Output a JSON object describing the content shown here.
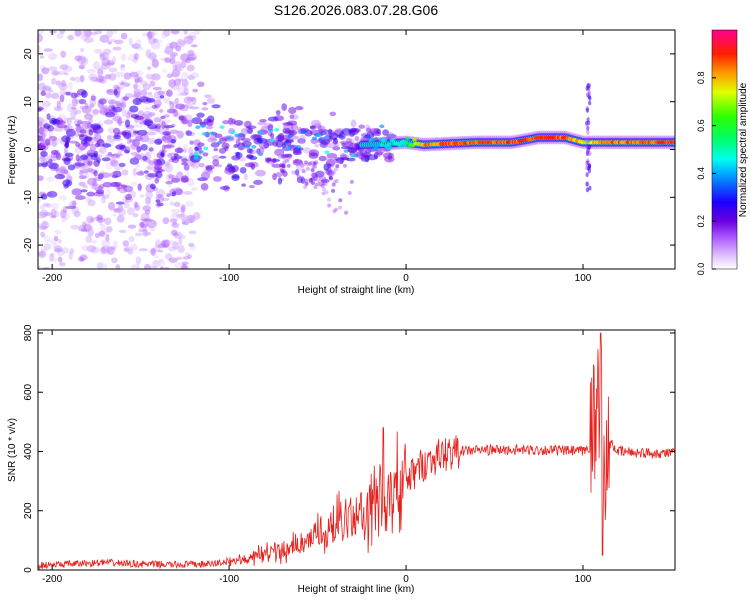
{
  "figure_title": "S126.2026.083.07.28.G06",
  "chart_data": [
    {
      "type": "heatmap",
      "title": "S126.2026.083.07.28.G06",
      "xlabel": "Height of straight line (km)",
      "ylabel": "Frequency (Hz)",
      "xlim": [
        -208,
        152
      ],
      "ylim": [
        -25,
        25
      ],
      "xticks": [
        -200,
        -100,
        0,
        100
      ],
      "yticks": [
        -20,
        -10,
        0,
        10,
        20
      ],
      "tick_labels_x": [
        "-200",
        "-100",
        "0",
        "100"
      ],
      "tick_labels_y": [
        "-20",
        "-10",
        "0",
        "10",
        "20"
      ],
      "colorbar": {
        "label": "Normalized spectral amplitude",
        "range": [
          0.0,
          1.0
        ],
        "ticks": [
          0.0,
          0.2,
          0.4,
          0.6,
          0.8
        ],
        "tick_labels": [
          "0.0",
          "0.2",
          "0.4",
          "0.6",
          "0.8"
        ],
        "colors": [
          "#ffffff",
          "#d9b3ff",
          "#8a2be2",
          "#0000ff",
          "#00ffff",
          "#00ff00",
          "#ffff00",
          "#ff8000",
          "#ff0000",
          "#ff0080"
        ]
      },
      "ridge": {
        "description_points": [
          {
            "x": -20,
            "f": 1.0,
            "a": 0.45
          },
          {
            "x": 0,
            "f": 1.5,
            "a": 0.55
          },
          {
            "x": 10,
            "f": 1.0,
            "a": 0.9
          },
          {
            "x": 40,
            "f": 1.5,
            "a": 0.95
          },
          {
            "x": 60,
            "f": 1.5,
            "a": 0.95
          },
          {
            "x": 75,
            "f": 2.5,
            "a": 0.95
          },
          {
            "x": 90,
            "f": 2.5,
            "a": 0.95
          },
          {
            "x": 100,
            "f": 1.5,
            "a": 0.8
          },
          {
            "x": 115,
            "f": 1.5,
            "a": 0.9
          },
          {
            "x": 140,
            "f": 1.5,
            "a": 0.95
          }
        ]
      }
    },
    {
      "type": "line",
      "xlabel": "Height of straight line (km)",
      "ylabel": "SNR (10 * v/v)",
      "xlim": [
        -208,
        152
      ],
      "ylim": [
        0,
        810
      ],
      "xticks": [
        -200,
        -100,
        0,
        100
      ],
      "yticks": [
        0,
        200,
        400,
        600,
        800
      ],
      "tick_labels_x": [
        "-200",
        "-100",
        "0",
        "100"
      ],
      "tick_labels_y": [
        "0",
        "200",
        "400",
        "600",
        "800"
      ],
      "color": "#e8201c",
      "series": [
        {
          "name": "SNR",
          "x": [
            -208,
            -190,
            -170,
            -150,
            -130,
            -110,
            -100,
            -90,
            -80,
            -70,
            -60,
            -50,
            -40,
            -30,
            -20,
            -10,
            0,
            10,
            20,
            30,
            40,
            60,
            80,
            100,
            105,
            108,
            110,
            112,
            115,
            120,
            135,
            152
          ],
          "y": [
            15,
            20,
            25,
            20,
            18,
            20,
            30,
            40,
            55,
            65,
            80,
            110,
            150,
            170,
            220,
            250,
            300,
            360,
            390,
            400,
            405,
            405,
            405,
            400,
            420,
            550,
            700,
            200,
            430,
            400,
            395,
            395
          ],
          "peaks": [
            {
              "x": -13,
              "y": 480
            },
            {
              "x": 110,
              "y": 800
            },
            {
              "x": 111,
              "y": 50
            }
          ]
        }
      ]
    }
  ]
}
